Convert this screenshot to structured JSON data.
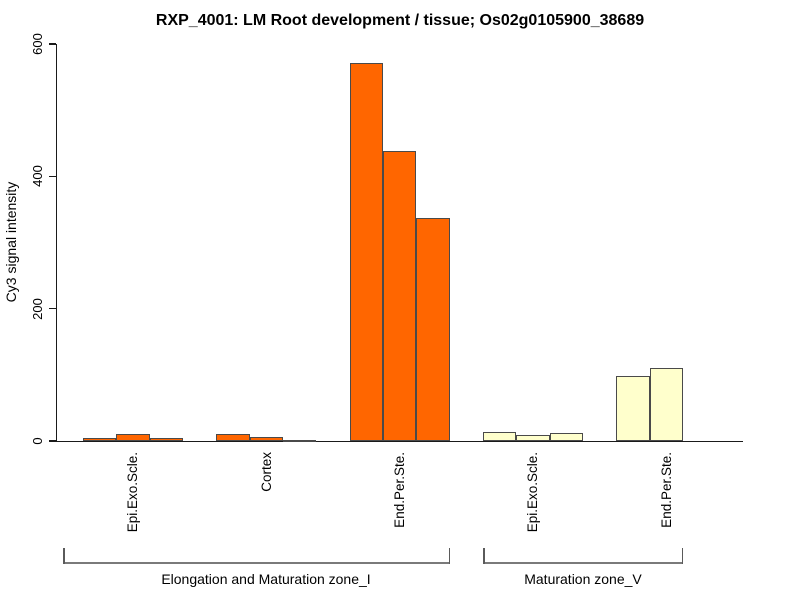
{
  "chart_data": {
    "type": "bar",
    "title": "RXP_4001: LM Root development / tissue; Os02g0105900_38689",
    "ylabel": "Cy3 signal intensity",
    "xlabel": "",
    "ylim": [
      0,
      600
    ],
    "yticks": [
      0,
      200,
      400,
      600
    ],
    "grid": false,
    "legend_position": "none",
    "bar_border_color": "#4a4a4a",
    "axis_color": "#1a1a1a",
    "bracket_color": "#7a7a7a",
    "groups": [
      {
        "tissue": "Epi.Exo.Scle.",
        "zone": "Elongation and Maturation zone_I",
        "color": "#FF6600",
        "values": [
          5,
          11,
          5
        ]
      },
      {
        "tissue": "Cortex",
        "zone": "Elongation and Maturation zone_I",
        "color": "#FF6600",
        "values": [
          11,
          6,
          2
        ]
      },
      {
        "tissue": "End.Per.Ste.",
        "zone": "Elongation and Maturation zone_I",
        "color": "#FF6600",
        "values": [
          572,
          438,
          337
        ]
      },
      {
        "tissue": "Epi.Exo.Scle.",
        "zone": "Maturation zone_V",
        "color": "#FFFFCC",
        "values": [
          14,
          9,
          12
        ]
      },
      {
        "tissue": "End.Per.Ste.",
        "zone": "Maturation zone_V",
        "color": "#FFFFCC",
        "values": [
          98,
          111,
          0
        ]
      }
    ],
    "zones": [
      {
        "label": "Elongation and Maturation zone_I"
      },
      {
        "label": "Maturation zone_V"
      }
    ]
  }
}
